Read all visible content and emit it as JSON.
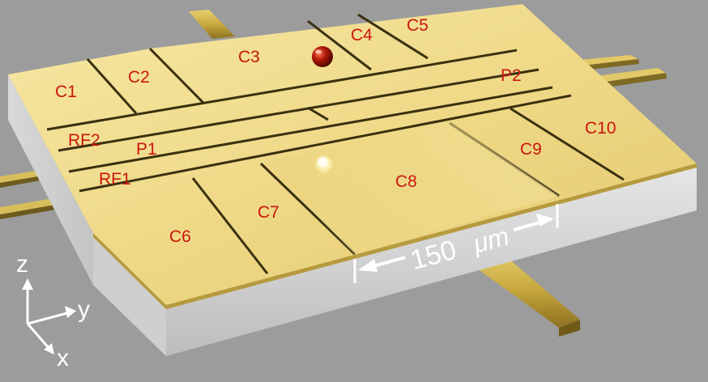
{
  "electrodes": {
    "c1": "C1",
    "c2": "C2",
    "c3": "C3",
    "c4": "C4",
    "c5": "C5",
    "c6": "C6",
    "c7": "C7",
    "c8": "C8",
    "c9": "C9",
    "c10": "C10",
    "rf1": "RF1",
    "rf2": "RF2",
    "p1": "P1",
    "p2": "P2"
  },
  "scale_bar": {
    "value": "150",
    "unit": "μm"
  },
  "axes": {
    "z": "z",
    "y": "y",
    "x": "x"
  },
  "colors": {
    "background": "#9c9c9c",
    "gold_top": "#f2df8c",
    "gold_dark": "#b69a3d",
    "label": "#c8160e",
    "substrate_front": "#d7d7d7",
    "ion_red": "#b01808"
  }
}
